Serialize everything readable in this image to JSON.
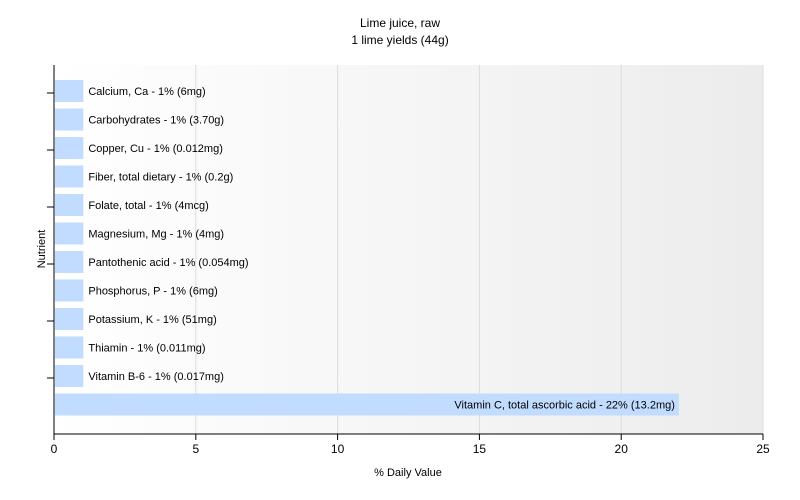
{
  "chart_data": {
    "type": "bar",
    "orientation": "horizontal",
    "title": "Lime juice, raw",
    "subtitle": "1 lime yields (44g)",
    "xlabel": "% Daily Value",
    "ylabel": "Nutrient",
    "xlim": [
      0,
      25
    ],
    "xticks": [
      0,
      5,
      10,
      15,
      20,
      25
    ],
    "grid": true,
    "bar_color": "#c2dcff",
    "categories": [
      "Calcium, Ca",
      "Carbohydrates",
      "Copper, Cu",
      "Fiber, total dietary",
      "Folate, total",
      "Magnesium, Mg",
      "Pantothenic acid",
      "Phosphorus, P",
      "Potassium, K",
      "Thiamin",
      "Vitamin B-6",
      "Vitamin C, total ascorbic acid"
    ],
    "values": [
      1,
      1,
      1,
      1,
      1,
      1,
      1,
      1,
      1,
      1,
      1,
      22
    ],
    "data_labels": [
      "Calcium, Ca - 1% (6mg)",
      "Carbohydrates - 1% (3.70g)",
      "Copper, Cu - 1% (0.012mg)",
      "Fiber, total dietary - 1% (0.2g)",
      "Folate, total - 1% (4mcg)",
      "Magnesium, Mg - 1% (4mg)",
      "Pantothenic acid - 1% (0.054mg)",
      "Phosphorus, P - 1% (6mg)",
      "Potassium, K - 1% (51mg)",
      "Thiamin - 1% (0.011mg)",
      "Vitamin B-6 - 1% (0.017mg)",
      "Vitamin C, total ascorbic acid - 22% (13.2mg)"
    ]
  }
}
